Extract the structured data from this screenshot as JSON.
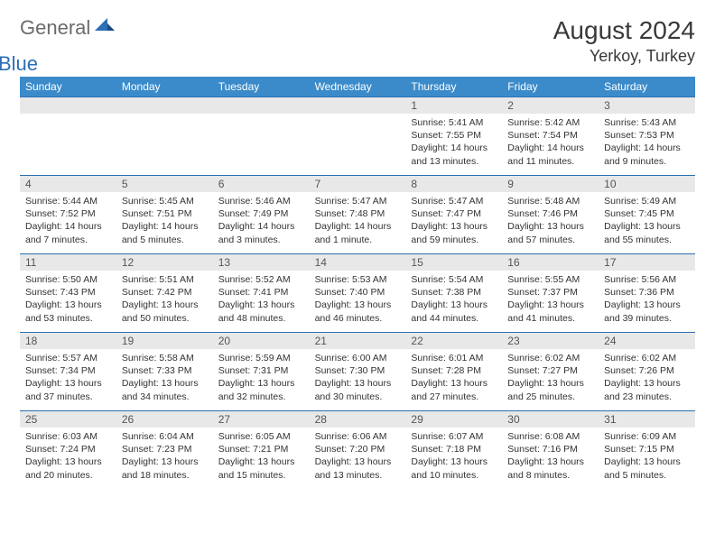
{
  "logo": {
    "general": "General",
    "blue": "Blue"
  },
  "title": "August 2024",
  "location": "Yerkoy, Turkey",
  "weekdays": [
    "Sunday",
    "Monday",
    "Tuesday",
    "Wednesday",
    "Thursday",
    "Friday",
    "Saturday"
  ],
  "colors": {
    "header_bar": "#3b8bca",
    "row_border": "#2d6fb5",
    "day_strip": "#e8e8e8",
    "logo_gray": "#6b6b6b",
    "logo_blue": "#2d6fb5",
    "title_color": "#393939"
  },
  "weeks": [
    [
      {
        "n": "",
        "sunrise": "",
        "sunset": "",
        "daylight": ""
      },
      {
        "n": "",
        "sunrise": "",
        "sunset": "",
        "daylight": ""
      },
      {
        "n": "",
        "sunrise": "",
        "sunset": "",
        "daylight": ""
      },
      {
        "n": "",
        "sunrise": "",
        "sunset": "",
        "daylight": ""
      },
      {
        "n": "1",
        "sunrise": "Sunrise: 5:41 AM",
        "sunset": "Sunset: 7:55 PM",
        "daylight": "Daylight: 14 hours and 13 minutes."
      },
      {
        "n": "2",
        "sunrise": "Sunrise: 5:42 AM",
        "sunset": "Sunset: 7:54 PM",
        "daylight": "Daylight: 14 hours and 11 minutes."
      },
      {
        "n": "3",
        "sunrise": "Sunrise: 5:43 AM",
        "sunset": "Sunset: 7:53 PM",
        "daylight": "Daylight: 14 hours and 9 minutes."
      }
    ],
    [
      {
        "n": "4",
        "sunrise": "Sunrise: 5:44 AM",
        "sunset": "Sunset: 7:52 PM",
        "daylight": "Daylight: 14 hours and 7 minutes."
      },
      {
        "n": "5",
        "sunrise": "Sunrise: 5:45 AM",
        "sunset": "Sunset: 7:51 PM",
        "daylight": "Daylight: 14 hours and 5 minutes."
      },
      {
        "n": "6",
        "sunrise": "Sunrise: 5:46 AM",
        "sunset": "Sunset: 7:49 PM",
        "daylight": "Daylight: 14 hours and 3 minutes."
      },
      {
        "n": "7",
        "sunrise": "Sunrise: 5:47 AM",
        "sunset": "Sunset: 7:48 PM",
        "daylight": "Daylight: 14 hours and 1 minute."
      },
      {
        "n": "8",
        "sunrise": "Sunrise: 5:47 AM",
        "sunset": "Sunset: 7:47 PM",
        "daylight": "Daylight: 13 hours and 59 minutes."
      },
      {
        "n": "9",
        "sunrise": "Sunrise: 5:48 AM",
        "sunset": "Sunset: 7:46 PM",
        "daylight": "Daylight: 13 hours and 57 minutes."
      },
      {
        "n": "10",
        "sunrise": "Sunrise: 5:49 AM",
        "sunset": "Sunset: 7:45 PM",
        "daylight": "Daylight: 13 hours and 55 minutes."
      }
    ],
    [
      {
        "n": "11",
        "sunrise": "Sunrise: 5:50 AM",
        "sunset": "Sunset: 7:43 PM",
        "daylight": "Daylight: 13 hours and 53 minutes."
      },
      {
        "n": "12",
        "sunrise": "Sunrise: 5:51 AM",
        "sunset": "Sunset: 7:42 PM",
        "daylight": "Daylight: 13 hours and 50 minutes."
      },
      {
        "n": "13",
        "sunrise": "Sunrise: 5:52 AM",
        "sunset": "Sunset: 7:41 PM",
        "daylight": "Daylight: 13 hours and 48 minutes."
      },
      {
        "n": "14",
        "sunrise": "Sunrise: 5:53 AM",
        "sunset": "Sunset: 7:40 PM",
        "daylight": "Daylight: 13 hours and 46 minutes."
      },
      {
        "n": "15",
        "sunrise": "Sunrise: 5:54 AM",
        "sunset": "Sunset: 7:38 PM",
        "daylight": "Daylight: 13 hours and 44 minutes."
      },
      {
        "n": "16",
        "sunrise": "Sunrise: 5:55 AM",
        "sunset": "Sunset: 7:37 PM",
        "daylight": "Daylight: 13 hours and 41 minutes."
      },
      {
        "n": "17",
        "sunrise": "Sunrise: 5:56 AM",
        "sunset": "Sunset: 7:36 PM",
        "daylight": "Daylight: 13 hours and 39 minutes."
      }
    ],
    [
      {
        "n": "18",
        "sunrise": "Sunrise: 5:57 AM",
        "sunset": "Sunset: 7:34 PM",
        "daylight": "Daylight: 13 hours and 37 minutes."
      },
      {
        "n": "19",
        "sunrise": "Sunrise: 5:58 AM",
        "sunset": "Sunset: 7:33 PM",
        "daylight": "Daylight: 13 hours and 34 minutes."
      },
      {
        "n": "20",
        "sunrise": "Sunrise: 5:59 AM",
        "sunset": "Sunset: 7:31 PM",
        "daylight": "Daylight: 13 hours and 32 minutes."
      },
      {
        "n": "21",
        "sunrise": "Sunrise: 6:00 AM",
        "sunset": "Sunset: 7:30 PM",
        "daylight": "Daylight: 13 hours and 30 minutes."
      },
      {
        "n": "22",
        "sunrise": "Sunrise: 6:01 AM",
        "sunset": "Sunset: 7:28 PM",
        "daylight": "Daylight: 13 hours and 27 minutes."
      },
      {
        "n": "23",
        "sunrise": "Sunrise: 6:02 AM",
        "sunset": "Sunset: 7:27 PM",
        "daylight": "Daylight: 13 hours and 25 minutes."
      },
      {
        "n": "24",
        "sunrise": "Sunrise: 6:02 AM",
        "sunset": "Sunset: 7:26 PM",
        "daylight": "Daylight: 13 hours and 23 minutes."
      }
    ],
    [
      {
        "n": "25",
        "sunrise": "Sunrise: 6:03 AM",
        "sunset": "Sunset: 7:24 PM",
        "daylight": "Daylight: 13 hours and 20 minutes."
      },
      {
        "n": "26",
        "sunrise": "Sunrise: 6:04 AM",
        "sunset": "Sunset: 7:23 PM",
        "daylight": "Daylight: 13 hours and 18 minutes."
      },
      {
        "n": "27",
        "sunrise": "Sunrise: 6:05 AM",
        "sunset": "Sunset: 7:21 PM",
        "daylight": "Daylight: 13 hours and 15 minutes."
      },
      {
        "n": "28",
        "sunrise": "Sunrise: 6:06 AM",
        "sunset": "Sunset: 7:20 PM",
        "daylight": "Daylight: 13 hours and 13 minutes."
      },
      {
        "n": "29",
        "sunrise": "Sunrise: 6:07 AM",
        "sunset": "Sunset: 7:18 PM",
        "daylight": "Daylight: 13 hours and 10 minutes."
      },
      {
        "n": "30",
        "sunrise": "Sunrise: 6:08 AM",
        "sunset": "Sunset: 7:16 PM",
        "daylight": "Daylight: 13 hours and 8 minutes."
      },
      {
        "n": "31",
        "sunrise": "Sunrise: 6:09 AM",
        "sunset": "Sunset: 7:15 PM",
        "daylight": "Daylight: 13 hours and 5 minutes."
      }
    ]
  ]
}
